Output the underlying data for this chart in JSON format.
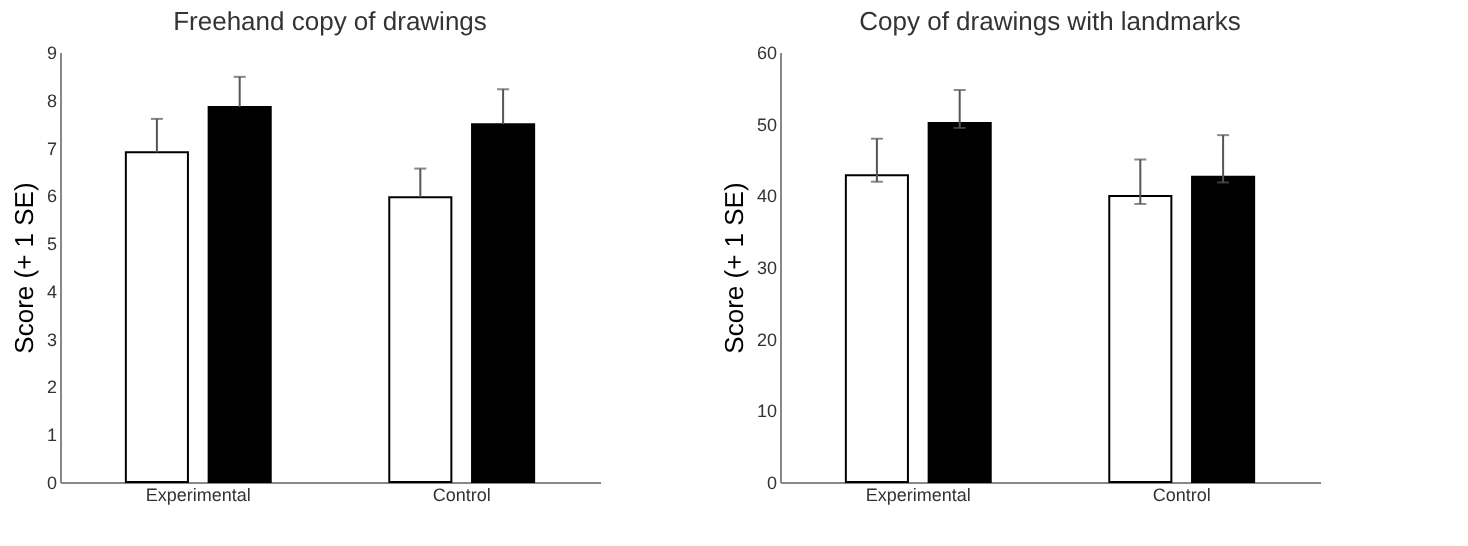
{
  "chart_data": [
    {
      "type": "bar",
      "title": "Freehand copy of drawings",
      "ylabel": "Score (+ 1 SE)",
      "categories": [
        "Experimental",
        "Control"
      ],
      "series": [
        {
          "color": "#ffffff",
          "values": [
            6.9,
            5.96
          ],
          "errors": [
            [
              6.9,
              7.6
            ],
            [
              5.96,
              6.56
            ]
          ]
        },
        {
          "color": "#000000",
          "values": [
            7.85,
            7.49
          ],
          "errors": [
            [
              7.85,
              8.48
            ],
            [
              7.49,
              8.22
            ]
          ]
        }
      ],
      "ylim": [
        0,
        9
      ],
      "yticks": [
        0,
        1,
        2,
        3,
        4,
        5,
        6,
        7,
        8,
        9
      ],
      "grid": false,
      "legend": false
    },
    {
      "type": "bar",
      "title": "Copy of drawings with landmarks",
      "ylabel": "Score (+ 1 SE)",
      "categories": [
        "Experimental",
        "Control"
      ],
      "series": [
        {
          "color": "#ffffff",
          "values": [
            42.8,
            39.9
          ],
          "errors": [
            [
              41.9,
              47.9
            ],
            [
              38.8,
              45.0
            ]
          ]
        },
        {
          "color": "#000000",
          "values": [
            50.1,
            42.6
          ],
          "errors": [
            [
              49.4,
              54.7
            ],
            [
              41.8,
              48.4
            ]
          ]
        }
      ],
      "ylim": [
        0,
        60
      ],
      "yticks": [
        0,
        10,
        20,
        30,
        40,
        50,
        60
      ],
      "grid": false,
      "legend": false
    }
  ]
}
